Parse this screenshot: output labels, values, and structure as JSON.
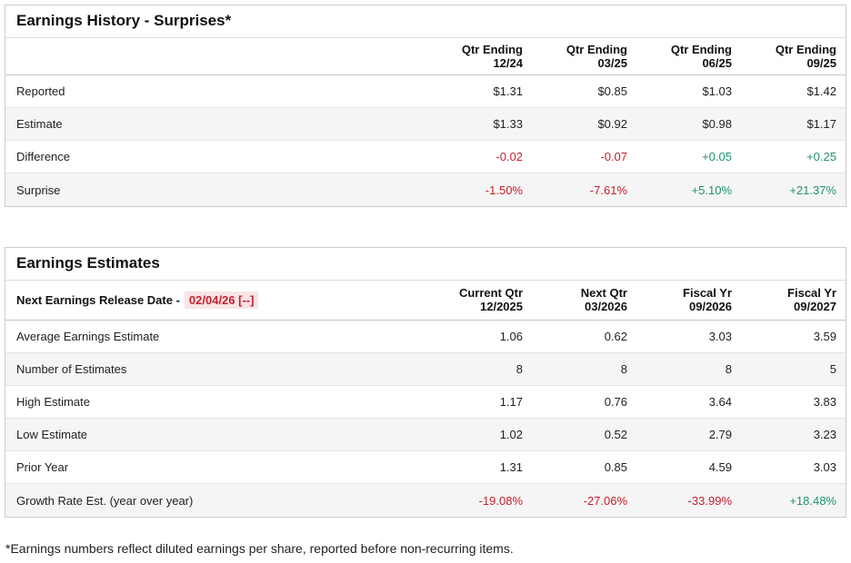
{
  "colors": {
    "negative": "#c5202e",
    "positive": "#1f9468",
    "date_highlight_bg": "#f8e4e6"
  },
  "surprises": {
    "title": "Earnings History - Surprises*",
    "columns": [
      {
        "l1": "Qtr Ending",
        "l2": "12/24"
      },
      {
        "l1": "Qtr Ending",
        "l2": "03/25"
      },
      {
        "l1": "Qtr Ending",
        "l2": "06/25"
      },
      {
        "l1": "Qtr Ending",
        "l2": "09/25"
      }
    ],
    "rows": [
      {
        "label": "Reported",
        "values": [
          "$1.31",
          "$0.85",
          "$1.03",
          "$1.42"
        ]
      },
      {
        "label": "Estimate",
        "values": [
          "$1.33",
          "$0.92",
          "$0.98",
          "$1.17"
        ]
      },
      {
        "label": "Difference",
        "values": [
          "-0.02",
          "-0.07",
          "+0.05",
          "+0.25"
        ]
      },
      {
        "label": "Surprise",
        "values": [
          "-1.50%",
          "-7.61%",
          "+5.10%",
          "+21.37%"
        ]
      }
    ]
  },
  "estimates": {
    "title": "Earnings Estimates",
    "release_date_label": "Next Earnings Release Date -",
    "release_date": "02/04/26 [--]",
    "columns": [
      {
        "l1": "Current Qtr",
        "l2": "12/2025"
      },
      {
        "l1": "Next Qtr",
        "l2": "03/2026"
      },
      {
        "l1": "Fiscal Yr",
        "l2": "09/2026"
      },
      {
        "l1": "Fiscal Yr",
        "l2": "09/2027"
      }
    ],
    "rows": [
      {
        "label": "Average Earnings Estimate",
        "values": [
          "1.06",
          "0.62",
          "3.03",
          "3.59"
        ]
      },
      {
        "label": "Number of Estimates",
        "values": [
          "8",
          "8",
          "8",
          "5"
        ]
      },
      {
        "label": "High Estimate",
        "values": [
          "1.17",
          "0.76",
          "3.64",
          "3.83"
        ]
      },
      {
        "label": "Low Estimate",
        "values": [
          "1.02",
          "0.52",
          "2.79",
          "3.23"
        ]
      },
      {
        "label": "Prior Year",
        "values": [
          "1.31",
          "0.85",
          "4.59",
          "3.03"
        ]
      },
      {
        "label": "Growth Rate Est. (year over year)",
        "values": [
          "-19.08%",
          "-27.06%",
          "-33.99%",
          "+18.48%"
        ]
      }
    ]
  },
  "footnote": "*Earnings numbers reflect diluted earnings per share, reported before non-recurring items."
}
